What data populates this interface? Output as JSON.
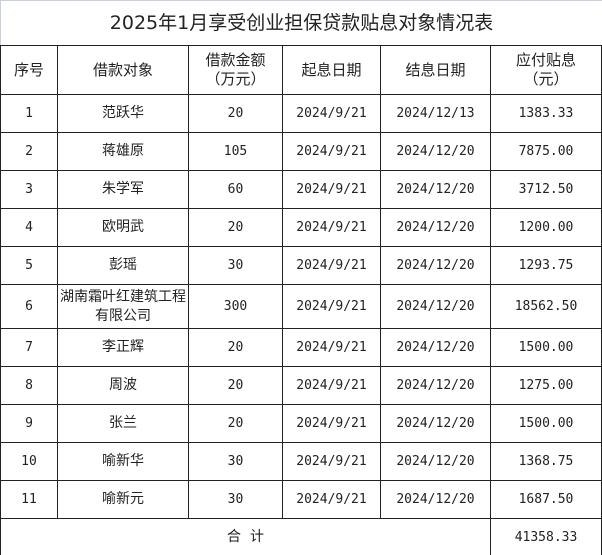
{
  "title": "2025年1月享受创业担保贷款贴息对象情况表",
  "headers": [
    "序号",
    "借款对象",
    "借款金额（万元）",
    "起息日期",
    "结息日期",
    "应付贴息（元）"
  ],
  "rows": [
    [
      "1",
      "范跃华",
      "20",
      "2024/9/21",
      "2024/12/13",
      "1383.33"
    ],
    [
      "2",
      "蒋雄原",
      "105",
      "2024/9/21",
      "2024/12/20",
      "7875.00"
    ],
    [
      "3",
      "朱学军",
      "60",
      "2024/9/21",
      "2024/12/20",
      "3712.50"
    ],
    [
      "4",
      "欧明武",
      "20",
      "2024/9/21",
      "2024/12/20",
      "1200.00"
    ],
    [
      "5",
      "彭瑶",
      "30",
      "2024/9/21",
      "2024/12/20",
      "1293.75"
    ],
    [
      "6",
      "湖南霜叶红建筑工程有限公司",
      "300",
      "2024/9/21",
      "2024/12/20",
      "18562.50"
    ],
    [
      "7",
      "李正辉",
      "20",
      "2024/9/21",
      "2024/12/20",
      "1500.00"
    ],
    [
      "8",
      "周波",
      "20",
      "2024/9/21",
      "2024/12/20",
      "1275.00"
    ],
    [
      "9",
      "张兰",
      "20",
      "2024/9/21",
      "2024/12/20",
      "1500.00"
    ],
    [
      "10",
      "喻新华",
      "30",
      "2024/9/21",
      "2024/12/20",
      "1368.75"
    ],
    [
      "11",
      "喻新元",
      "30",
      "2024/9/21",
      "2024/12/20",
      "1687.50"
    ]
  ],
  "total": {
    "label": "合  计",
    "value": "41358.33"
  }
}
